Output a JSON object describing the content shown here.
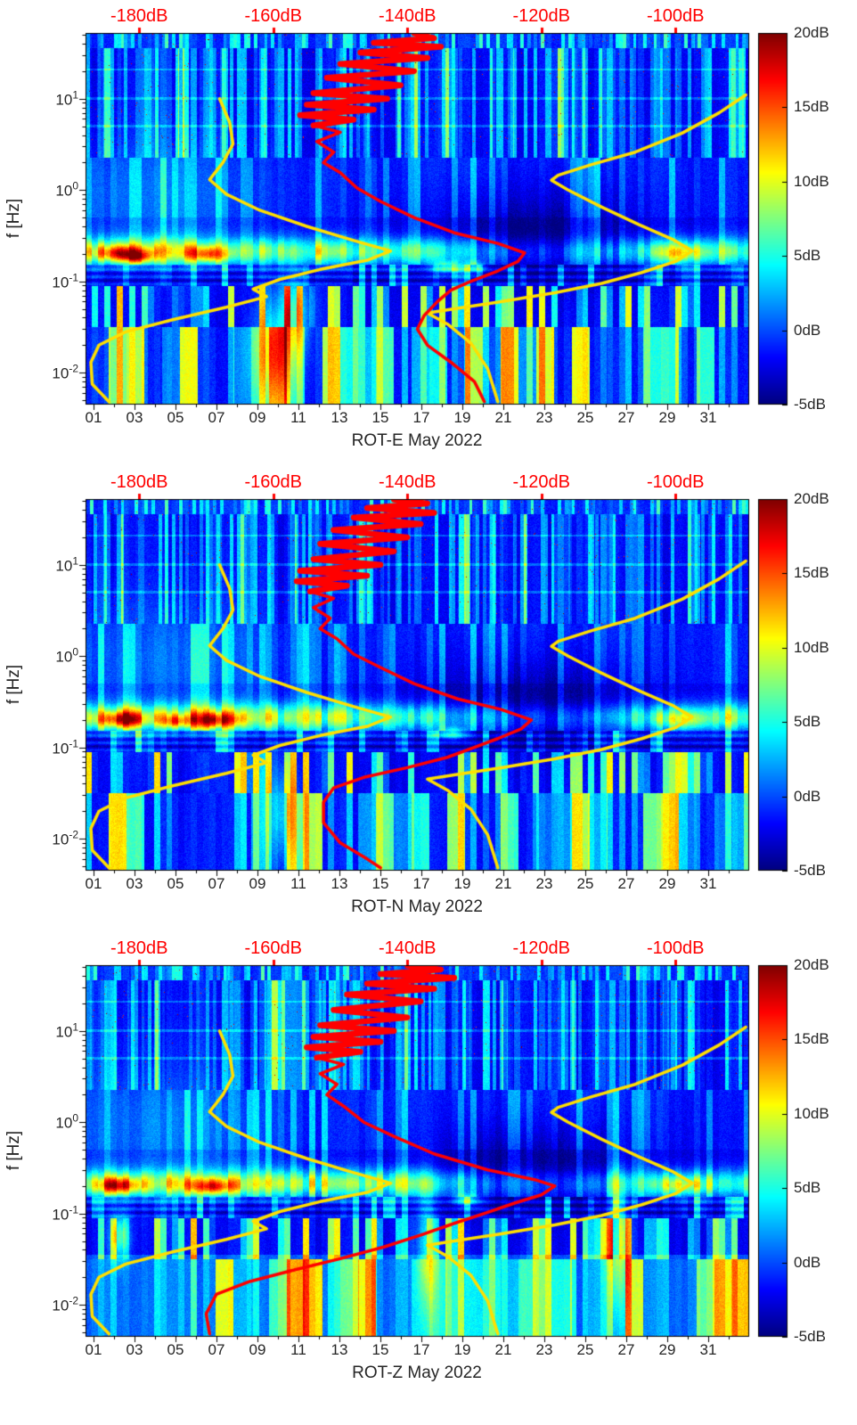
{
  "figure": {
    "background": "#ffffff",
    "text_color": "#262626",
    "red": "#ff0000",
    "yellow": "#ffdf00"
  },
  "axes": {
    "freq": {
      "label": "f [Hz]",
      "log_min": -2.35,
      "log_max": 1.72,
      "ticks": [
        {
          "f": 10,
          "base": "10",
          "exp": "1"
        },
        {
          "f": 1,
          "base": "10",
          "exp": "0"
        },
        {
          "f": 0.1,
          "base": "10",
          "exp": "-1"
        },
        {
          "f": 0.01,
          "base": "10",
          "exp": "-2"
        }
      ]
    },
    "time": {
      "day_min": 0.61,
      "day_max": 33.0,
      "ticks": [
        {
          "day": 1,
          "label": "01"
        },
        {
          "day": 3,
          "label": "03"
        },
        {
          "day": 5,
          "label": "05"
        },
        {
          "day": 7,
          "label": "07"
        },
        {
          "day": 9,
          "label": "09"
        },
        {
          "day": 11,
          "label": "11"
        },
        {
          "day": 13,
          "label": "13"
        },
        {
          "day": 15,
          "label": "15"
        },
        {
          "day": 17,
          "label": "17"
        },
        {
          "day": 19,
          "label": "19"
        },
        {
          "day": 21,
          "label": "21"
        },
        {
          "day": 23,
          "label": "23"
        },
        {
          "day": 25,
          "label": "25"
        },
        {
          "day": 27,
          "label": "27"
        },
        {
          "day": 29,
          "label": "29"
        },
        {
          "day": 31,
          "label": "31"
        }
      ]
    },
    "db_top": {
      "db_min": -188,
      "db_max": -89,
      "ticks": [
        {
          "db": -180,
          "label": "-180dB"
        },
        {
          "db": -160,
          "label": "-160dB"
        },
        {
          "db": -140,
          "label": "-140dB"
        },
        {
          "db": -120,
          "label": "-120dB"
        },
        {
          "db": -100,
          "label": "-100dB"
        }
      ]
    }
  },
  "colorbar": {
    "vmin": -5,
    "vmax": 20,
    "ticks": [
      {
        "v": 20,
        "label": "20dB"
      },
      {
        "v": 15,
        "label": "15dB"
      },
      {
        "v": 10,
        "label": "10dB"
      },
      {
        "v": 5,
        "label": "5dB"
      },
      {
        "v": 0,
        "label": "0dB"
      },
      {
        "v": -5,
        "label": "-5dB"
      }
    ]
  },
  "noise_model_curves": {
    "yellow_low_db_hz": [
      [
        -168,
        10
      ],
      [
        -166.5,
        5.5
      ],
      [
        -166,
        3.2
      ],
      [
        -167.5,
        2.0
      ],
      [
        -169.5,
        1.3
      ],
      [
        -167,
        0.9
      ],
      [
        -162,
        0.6
      ],
      [
        -155,
        0.4
      ],
      [
        -148,
        0.28
      ],
      [
        -142.5,
        0.215
      ],
      [
        -146,
        0.17
      ],
      [
        -153,
        0.135
      ],
      [
        -159,
        0.105
      ],
      [
        -163,
        0.082
      ],
      [
        -161,
        0.068
      ],
      [
        -167,
        0.052
      ],
      [
        -175,
        0.038
      ],
      [
        -182,
        0.028
      ],
      [
        -186,
        0.02
      ],
      [
        -187.2,
        0.013
      ],
      [
        -187,
        0.0075
      ],
      [
        -184.5,
        0.0048
      ]
    ],
    "yellow_high_db_hz": [
      [
        -89.5,
        11
      ],
      [
        -93.5,
        7
      ],
      [
        -99,
        4.2
      ],
      [
        -106,
        2.6
      ],
      [
        -112.5,
        1.9
      ],
      [
        -117.5,
        1.45
      ],
      [
        -118.5,
        1.28
      ],
      [
        -116,
        1.0
      ],
      [
        -111,
        0.65
      ],
      [
        -105.5,
        0.42
      ],
      [
        -100.5,
        0.29
      ],
      [
        -97.5,
        0.215
      ],
      [
        -100,
        0.165
      ],
      [
        -105,
        0.125
      ],
      [
        -111,
        0.095
      ],
      [
        -118,
        0.075
      ],
      [
        -126,
        0.06
      ],
      [
        -133,
        0.05
      ],
      [
        -137,
        0.045
      ],
      [
        -134,
        0.034
      ],
      [
        -130.5,
        0.021
      ],
      [
        -128,
        0.011
      ],
      [
        -126.5,
        0.0048
      ]
    ]
  },
  "spectrogram": {
    "background_db": -2.5,
    "speck_threshold": 0.9962,
    "speck_min_logf": 0.35,
    "global_column_amp": 1.4,
    "noise_amp": 1.6,
    "bottom_boost_below": -1.45,
    "hlines": {
      "positions": [
        0.7,
        1.0,
        1.32
      ],
      "halfwidth": 0.013,
      "amp": 2.2
    },
    "hband": {
      "lo": -1.05,
      "hi": -0.82,
      "amp": 1.6,
      "freq": 80
    },
    "microseism": {
      "center_log": -0.67,
      "sigma_log": 0.105,
      "amp_by_day": [
        [
          0.6,
          10
        ],
        [
          3,
          10.5
        ],
        [
          8,
          9.5
        ],
        [
          12,
          9
        ],
        [
          16,
          8.5
        ],
        [
          18,
          7
        ],
        [
          20,
          4.5
        ],
        [
          23,
          3.5
        ],
        [
          26,
          4.5
        ],
        [
          28,
          7
        ],
        [
          29.5,
          9.2
        ],
        [
          31,
          8
        ],
        [
          33,
          7.5
        ]
      ]
    },
    "dark_patch": {
      "day": 22.5,
      "log_f": -0.5,
      "sigma_day": 3.8,
      "sigma_log": 0.33,
      "amp": -3.2
    },
    "left_haze": {
      "day": 4.5,
      "log_f": -0.05,
      "sigma_day": 3.5,
      "sigma_log": 0.5,
      "amp": 2.2
    },
    "regions": [
      {
        "lo": 1.55,
        "hi": 1.73,
        "base": 1.8,
        "stripes": [
          {
            "rate": 6.0,
            "thr": 0.45,
            "gain": 7,
            "salt": 1
          }
        ]
      },
      {
        "lo": 0.35,
        "hi": 1.55,
        "base": 0.6,
        "stripes": [
          {
            "rate": 6.0,
            "thr": 0.5,
            "gain": 6,
            "salt": 2
          },
          {
            "rate": 3.3,
            "thr": 0.65,
            "gain": 5,
            "salt": 3
          }
        ]
      },
      {
        "lo": -0.3,
        "hi": 0.35,
        "base": 1.3,
        "stripes": [
          {
            "rate": 3.3,
            "thr": 0.62,
            "gain": 5,
            "salt": 4
          }
        ]
      },
      {
        "lo": -0.82,
        "hi": -0.3,
        "base": 0.8,
        "stripes": [
          {
            "rate": 3.3,
            "thr": 0.65,
            "gain": 4,
            "salt": 4
          }
        ]
      },
      {
        "lo": -1.05,
        "hi": -0.82,
        "base": 0.1,
        "stripes": [
          {
            "rate": 3.3,
            "thr": 0.55,
            "gain": 7,
            "salt": 5
          }
        ]
      },
      {
        "lo": -1.5,
        "hi": -1.05,
        "base": 0.6,
        "stripes": [
          {
            "rate": 3.3,
            "thr": 0.5,
            "gain": 14,
            "salt": 6
          }
        ]
      },
      {
        "lo": -2.4,
        "hi": -1.5,
        "base": 1.2,
        "stripes": [
          {
            "rate": 1.15,
            "thr": 0.42,
            "gain": 12,
            "salt": 7
          },
          {
            "rate": 3.3,
            "thr": 0.6,
            "gain": 5,
            "salt": 6
          }
        ]
      }
    ]
  },
  "chart_data": [
    {
      "type": "heatmap",
      "title": "ROT-E May 2022",
      "seed": 11,
      "bottom_boost": 0,
      "x_range_days": [
        0.61,
        33.0
      ],
      "freq_range_hz": [
        0.0045,
        52
      ],
      "color_range_db": [
        -5,
        20
      ],
      "top_axis_range_db": [
        -188,
        -89
      ],
      "red_median_db_hz": [
        [
          -139,
          52
        ],
        [
          -136,
          46
        ],
        [
          -145,
          41
        ],
        [
          -135,
          37
        ],
        [
          -147,
          32
        ],
        [
          -137,
          28
        ],
        [
          -150,
          24
        ],
        [
          -139,
          20
        ],
        [
          -152,
          17
        ],
        [
          -141,
          14
        ],
        [
          -154,
          11.5
        ],
        [
          -143,
          10
        ],
        [
          -155,
          8.6
        ],
        [
          -145,
          7.6
        ],
        [
          -156,
          6.6
        ],
        [
          -148,
          5.9
        ],
        [
          -154,
          5.1
        ],
        [
          -150,
          4.3
        ],
        [
          -153.5,
          3.4
        ],
        [
          -151,
          2.6
        ],
        [
          -152.5,
          2.0
        ],
        [
          -150,
          1.55
        ],
        [
          -147.5,
          1.05
        ],
        [
          -144,
          0.75
        ],
        [
          -139,
          0.5
        ],
        [
          -133,
          0.34
        ],
        [
          -126.5,
          0.26
        ],
        [
          -122.5,
          0.205
        ],
        [
          -123.5,
          0.165
        ],
        [
          -126.5,
          0.13
        ],
        [
          -130.5,
          0.1
        ],
        [
          -133.5,
          0.08
        ],
        [
          -135.5,
          0.06
        ],
        [
          -137.5,
          0.042
        ],
        [
          -138.5,
          0.03
        ],
        [
          -137,
          0.02
        ],
        [
          -133.5,
          0.013
        ],
        [
          -130,
          0.008
        ],
        [
          -128.5,
          0.0048
        ]
      ],
      "hotspots": [
        [
          2.3,
          -0.7,
          0.8,
          0.06,
          9
        ],
        [
          3.2,
          -0.74,
          0.5,
          0.05,
          7
        ],
        [
          6.6,
          -0.71,
          0.7,
          0.06,
          8
        ],
        [
          9.9,
          -1.75,
          0.8,
          0.45,
          7
        ],
        [
          10.9,
          -1.3,
          0.45,
          0.3,
          6
        ],
        [
          18.3,
          -0.85,
          0.5,
          0.05,
          8
        ],
        [
          19.6,
          -0.85,
          0.35,
          0.05,
          7
        ],
        [
          29.7,
          -0.7,
          0.8,
          0.07,
          5
        ]
      ]
    },
    {
      "type": "heatmap",
      "title": "ROT-N May 2022",
      "seed": 23,
      "bottom_boost": 0,
      "x_range_days": [
        0.61,
        33.0
      ],
      "freq_range_hz": [
        0.0045,
        52
      ],
      "color_range_db": [
        -5,
        20
      ],
      "top_axis_range_db": [
        -188,
        -89
      ],
      "red_median_db_hz": [
        [
          -142,
          52
        ],
        [
          -137,
          47
        ],
        [
          -146,
          42
        ],
        [
          -136,
          37
        ],
        [
          -148,
          33
        ],
        [
          -138,
          28
        ],
        [
          -151,
          24
        ],
        [
          -140,
          20
        ],
        [
          -153,
          17
        ],
        [
          -142,
          14
        ],
        [
          -154,
          11.5
        ],
        [
          -144,
          10
        ],
        [
          -156,
          8.6
        ],
        [
          -146,
          7.6
        ],
        [
          -156.5,
          6.6
        ],
        [
          -149,
          5.9
        ],
        [
          -154.5,
          5.1
        ],
        [
          -151,
          4.3
        ],
        [
          -154,
          3.4
        ],
        [
          -151.5,
          2.6
        ],
        [
          -153,
          2.0
        ],
        [
          -150.5,
          1.55
        ],
        [
          -148,
          1.05
        ],
        [
          -144,
          0.75
        ],
        [
          -139,
          0.5
        ],
        [
          -132.5,
          0.34
        ],
        [
          -126,
          0.26
        ],
        [
          -121.5,
          0.2
        ],
        [
          -123,
          0.16
        ],
        [
          -126.5,
          0.125
        ],
        [
          -130,
          0.1
        ],
        [
          -134,
          0.078
        ],
        [
          -140,
          0.06
        ],
        [
          -146.5,
          0.047
        ],
        [
          -151,
          0.036
        ],
        [
          -152.5,
          0.025
        ],
        [
          -152.5,
          0.015
        ],
        [
          -150,
          0.009
        ],
        [
          -146,
          0.006
        ],
        [
          -144,
          0.0048
        ]
      ],
      "hotspots": [
        [
          2.4,
          -0.7,
          0.8,
          0.06,
          9
        ],
        [
          5.0,
          -0.72,
          0.5,
          0.05,
          7
        ],
        [
          6.9,
          -0.71,
          0.8,
          0.06,
          9
        ],
        [
          10.2,
          -1.7,
          0.6,
          0.4,
          5
        ],
        [
          18.5,
          -0.85,
          0.5,
          0.05,
          8
        ],
        [
          29.7,
          -0.7,
          0.8,
          0.07,
          5
        ]
      ]
    },
    {
      "type": "heatmap",
      "title": "ROT-Z May 2022",
      "seed": 37,
      "bottom_boost": 2.2,
      "x_range_days": [
        0.61,
        33.0
      ],
      "freq_range_hz": [
        0.0045,
        52
      ],
      "color_range_db": [
        -5,
        20
      ],
      "top_axis_range_db": [
        -188,
        -89
      ],
      "red_median_db_hz": [
        [
          -140,
          52
        ],
        [
          -135,
          47
        ],
        [
          -144,
          42
        ],
        [
          -133,
          38
        ],
        [
          -146,
          33
        ],
        [
          -136,
          29
        ],
        [
          -149,
          25
        ],
        [
          -138,
          21
        ],
        [
          -151,
          17
        ],
        [
          -140,
          14
        ],
        [
          -153,
          11.5
        ],
        [
          -142,
          10
        ],
        [
          -154,
          8.6
        ],
        [
          -144,
          7.6
        ],
        [
          -155,
          6.6
        ],
        [
          -147,
          5.9
        ],
        [
          -153.5,
          5.1
        ],
        [
          -149.5,
          4.3
        ],
        [
          -153,
          3.4
        ],
        [
          -150.5,
          2.6
        ],
        [
          -152,
          2.0
        ],
        [
          -149.5,
          1.5
        ],
        [
          -146.5,
          1.0
        ],
        [
          -142,
          0.7
        ],
        [
          -136,
          0.45
        ],
        [
          -128,
          0.3
        ],
        [
          -121,
          0.235
        ],
        [
          -118,
          0.2
        ],
        [
          -120,
          0.16
        ],
        [
          -124,
          0.13
        ],
        [
          -128.5,
          0.1
        ],
        [
          -133,
          0.078
        ],
        [
          -138,
          0.058
        ],
        [
          -143.5,
          0.043
        ],
        [
          -150,
          0.032
        ],
        [
          -157,
          0.024
        ],
        [
          -163.5,
          0.018
        ],
        [
          -168.5,
          0.013
        ],
        [
          -170,
          0.008
        ],
        [
          -169.5,
          0.0048
        ]
      ],
      "hotspots": [
        [
          2.2,
          -0.7,
          0.7,
          0.06,
          9
        ],
        [
          2.3,
          -1.25,
          0.35,
          0.18,
          8
        ],
        [
          6.8,
          -0.71,
          0.8,
          0.06,
          9
        ],
        [
          17.3,
          -1.35,
          0.35,
          0.5,
          6
        ],
        [
          19.2,
          -0.85,
          0.45,
          0.05,
          7
        ],
        [
          26.6,
          -1.3,
          0.35,
          0.5,
          7
        ],
        [
          29.7,
          -0.7,
          0.8,
          0.07,
          5
        ]
      ]
    }
  ]
}
